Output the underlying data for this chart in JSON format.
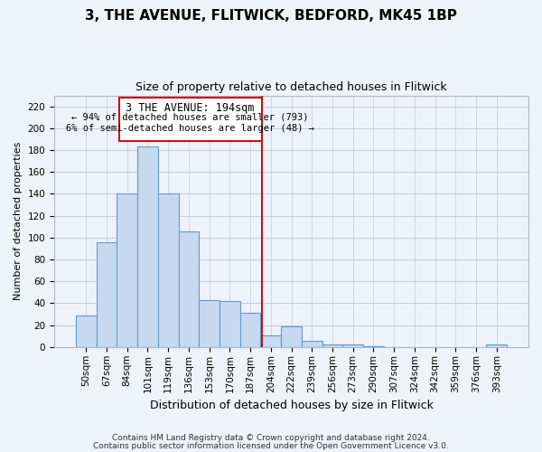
{
  "title": "3, THE AVENUE, FLITWICK, BEDFORD, MK45 1BP",
  "subtitle": "Size of property relative to detached houses in Flitwick",
  "xlabel": "Distribution of detached houses by size in Flitwick",
  "ylabel": "Number of detached properties",
  "bar_labels": [
    "50sqm",
    "67sqm",
    "84sqm",
    "101sqm",
    "119sqm",
    "136sqm",
    "153sqm",
    "170sqm",
    "187sqm",
    "204sqm",
    "222sqm",
    "239sqm",
    "256sqm",
    "273sqm",
    "290sqm",
    "307sqm",
    "324sqm",
    "342sqm",
    "359sqm",
    "376sqm",
    "393sqm"
  ],
  "bar_values": [
    29,
    96,
    140,
    183,
    140,
    106,
    43,
    42,
    31,
    11,
    19,
    6,
    2,
    2,
    1,
    0,
    0,
    0,
    0,
    0,
    2
  ],
  "bar_color": "#c6d9f0",
  "bar_edge_color": "#6699cc",
  "vline_x": 8.55,
  "vline_color": "#cc1111",
  "ylim": [
    0,
    230
  ],
  "yticks": [
    0,
    20,
    40,
    60,
    80,
    100,
    120,
    140,
    160,
    180,
    200,
    220
  ],
  "annotation_title": "3 THE AVENUE: 194sqm",
  "annotation_line1": "← 94% of detached houses are smaller (793)",
  "annotation_line2": "6% of semi-detached houses are larger (48) →",
  "footer1": "Contains HM Land Registry data © Crown copyright and database right 2024.",
  "footer2": "Contains public sector information licensed under the Open Government Licence v3.0.",
  "bg_color": "#eef2fa",
  "grid_color": "#c0cce0",
  "title_fontsize": 11,
  "subtitle_fontsize": 9,
  "ylabel_fontsize": 8,
  "xlabel_fontsize": 9,
  "tick_fontsize": 7.5,
  "footer_fontsize": 6.5
}
